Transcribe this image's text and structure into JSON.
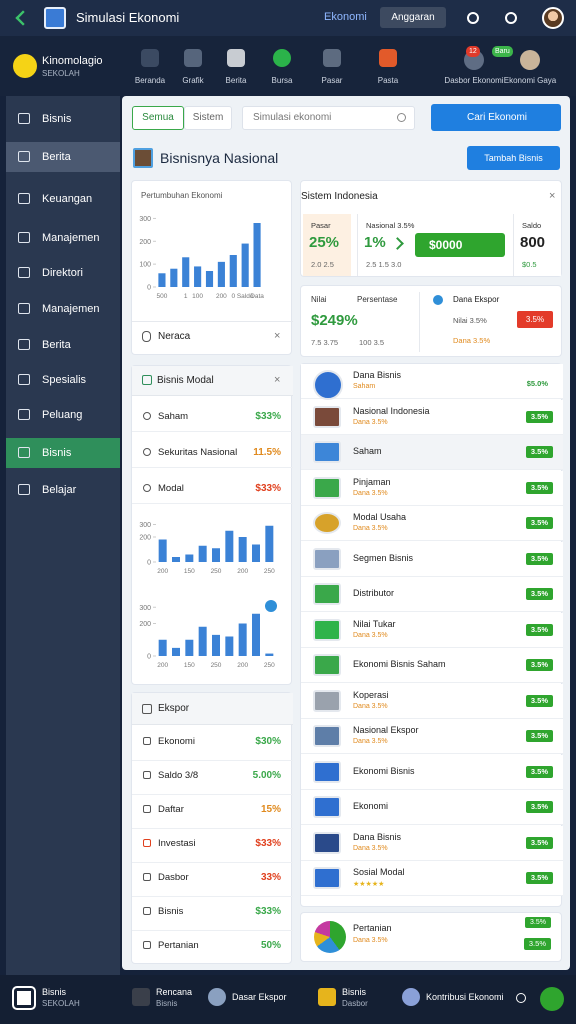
{
  "topbar": {
    "title": "Simulasi Ekonomi",
    "link": "Ekonomi",
    "button": "Anggaran"
  },
  "profile": {
    "name": "Kinomolagio",
    "role": "SEKOLAH"
  },
  "nav": [
    "Beranda",
    "Grafik",
    "Berita",
    "Bursa",
    "Pasar",
    "Pasta"
  ],
  "nav_right": [
    {
      "label": "Dasbor Ekonomi",
      "badge": "12"
    },
    {
      "label": "Ekonomi Gaya",
      "badge": "Baru"
    }
  ],
  "sidebar": [
    "Bisnis",
    "Berita",
    "Keuangan",
    "Manajemen",
    "Direktori",
    "Manajemen",
    "Berita",
    "Spesialis",
    "Peluang",
    "Bisnis",
    "Belajar"
  ],
  "search": {
    "tabs": [
      "Semua",
      "Sistem"
    ],
    "placeholder": "Simulasi ekonomi",
    "button": "Cari Ekonomi"
  },
  "header": {
    "title": "Bisnisnya Nasional",
    "button": "Tambah Bisnis"
  },
  "growth_card": {
    "title": "Pertumbuhan Ekonomi",
    "footer": "Neraca",
    "close": "×",
    "chart": {
      "type": "bar",
      "categories": [
        "500",
        null,
        "1",
        "100",
        null,
        "200",
        "0",
        "Saldo",
        "Data"
      ],
      "values": [
        60,
        80,
        130,
        90,
        70,
        110,
        140,
        190,
        280
      ],
      "ylim": [
        0,
        350
      ],
      "yticks": [
        0,
        100,
        200,
        300
      ],
      "color": "#3b82d6"
    }
  },
  "modal_card": {
    "title": "Bisnis Modal",
    "close": "×",
    "rows": [
      {
        "label": "Saham",
        "value": "$33%",
        "color": "#3aa84a"
      },
      {
        "label": "Sekuritas Nasional",
        "value": "11.5%",
        "color": "#e08a1e"
      },
      {
        "label": "Modal",
        "value": "$33%",
        "color": "#e0401e"
      }
    ],
    "charts": [
      {
        "type": "bar",
        "categories": [
          "200",
          null,
          "150",
          null,
          "250",
          null,
          "200",
          null,
          "250"
        ],
        "values": [
          180,
          40,
          60,
          130,
          110,
          250,
          200,
          140,
          290
        ],
        "ylim": [
          0,
          320
        ],
        "yticks": [
          0,
          200,
          300
        ],
        "color": "#3b82d6"
      },
      {
        "type": "bar",
        "categories": [
          "200",
          null,
          "150",
          null,
          "250",
          null,
          "200",
          null,
          "250"
        ],
        "values": [
          100,
          50,
          100,
          180,
          130,
          120,
          200,
          260,
          15
        ],
        "ylim": [
          0,
          320
        ],
        "yticks": [
          0,
          200,
          300
        ],
        "color": "#3b82d6"
      }
    ]
  },
  "export_card": {
    "title": "Ekspor",
    "rows": [
      {
        "label": "Ekonomi",
        "value": "$30%",
        "color": "#3aa84a"
      },
      {
        "label": "Saldo 3/8",
        "value": "5.00%",
        "color": "#3aa84a"
      },
      {
        "label": "Daftar",
        "value": "15%",
        "color": "#e08a1e"
      },
      {
        "label": "Investasi",
        "value": "$33%",
        "color": "#e0401e"
      },
      {
        "label": "Dasbor",
        "value": "33%",
        "color": "#e0401e"
      },
      {
        "label": "Bisnis",
        "value": "$33%",
        "color": "#3aa84a"
      },
      {
        "label": "Pertanian",
        "value": "50%",
        "color": "#3aa84a"
      }
    ]
  },
  "stats_card": {
    "title": "Sistem Indonesia",
    "close": "×",
    "cells": [
      {
        "label": "Pasar",
        "value": "25%",
        "sub": "2.0 2.5"
      },
      {
        "label": "Nasional 3.5%",
        "value": "1%",
        "sub": "2.5 1.5 3.0"
      },
      {
        "label": "Saldo",
        "value": "800",
        "sub": "$0.5"
      }
    ],
    "action": "$0000"
  },
  "detail_card": {
    "label": "Nilai",
    "label2": "Persentase",
    "value": "$249%",
    "sub": "7.5 3.75",
    "sub2": "100 3.5",
    "right_label": "Dana Ekspor",
    "right_sub": "Nilai 3.5%",
    "badge": "3.5%",
    "note": "Dana 3.5%"
  },
  "list": [
    {
      "title": "Dana Bisnis",
      "sub": "Saham",
      "badge": "$5.0%"
    },
    {
      "title": "Nasional Indonesia",
      "sub": "Dana 3.5%",
      "badge": "3.5%"
    },
    {
      "title": "Saham",
      "sub": null,
      "badge": "3.5%"
    },
    {
      "title": "Pinjaman",
      "sub": "Dana 3.5%",
      "badge": "3.5%"
    },
    {
      "title": "Modal Usaha",
      "sub": "Dana 3.5%",
      "badge": "3.5%"
    },
    {
      "title": "Segmen Bisnis",
      "sub": null,
      "badge": "3.5%"
    },
    {
      "title": "Distributor",
      "sub": null,
      "badge": "3.5%"
    },
    {
      "title": "Nilai Tukar",
      "sub": "Dana 3.5%",
      "badge": "3.5%"
    },
    {
      "title": "Ekonomi Bisnis Saham",
      "sub": null,
      "badge": "3.5%"
    },
    {
      "title": "Koperasi",
      "sub": "Dana 3.5%",
      "badge": "3.5%"
    },
    {
      "title": "Nasional Ekspor",
      "sub": "Dana 3.5%",
      "badge": "3.5%"
    },
    {
      "title": "Ekonomi Bisnis",
      "sub": null,
      "badge": "3.5%"
    },
    {
      "title": "Ekonomi",
      "sub": null,
      "badge": "3.5%"
    },
    {
      "title": "Dana Bisnis",
      "sub": "Dana 3.5%",
      "badge": "3.5%"
    },
    {
      "title": "Sosial Modal",
      "sub": "★★★★★",
      "badge": "3.5%"
    }
  ],
  "list_footer": {
    "title": "Pertanian",
    "sub": "Dana 3.5%",
    "badge": "3.5%",
    "badge_top": "3.5%"
  },
  "bottombar": [
    {
      "title": "Bisnis",
      "sub": "SEKOLAH"
    },
    {
      "title": "Rencana",
      "sub": "Bisnis"
    },
    {
      "title": "Dasar Ekspor",
      "sub": null
    },
    {
      "title": "Bisnis",
      "sub": "Dasbor"
    },
    {
      "title": "Kontribusi Ekonomi",
      "sub": null
    }
  ]
}
